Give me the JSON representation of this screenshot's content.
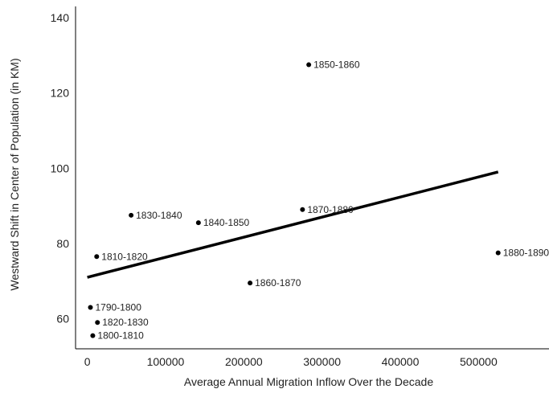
{
  "chart_data": {
    "type": "scatter",
    "title": "",
    "xlabel": "Average Annual Migration Inflow Over the Decade",
    "ylabel": "Westward Shift in Center of Population (in KM)",
    "xlim": [
      -15000,
      590000
    ],
    "ylim": [
      52,
      143
    ],
    "xticks": [
      0,
      100000,
      200000,
      300000,
      400000,
      500000
    ],
    "yticks": [
      60,
      80,
      100,
      120,
      140
    ],
    "grid": false,
    "legend": "none",
    "point_color": "#000000",
    "points": [
      {
        "label": "1790-1800",
        "x": 4000,
        "y": 63
      },
      {
        "label": "1800-1810",
        "x": 7000,
        "y": 55.5
      },
      {
        "label": "1810-1820",
        "x": 12000,
        "y": 76.5
      },
      {
        "label": "1820-1830",
        "x": 13000,
        "y": 59
      },
      {
        "label": "1830-1840",
        "x": 56000,
        "y": 87.5
      },
      {
        "label": "1840-1850",
        "x": 142000,
        "y": 85.5
      },
      {
        "label": "1850-1860",
        "x": 283000,
        "y": 127.5
      },
      {
        "label": "1860-1870",
        "x": 208000,
        "y": 69.5
      },
      {
        "label": "1870-1880",
        "x": 275000,
        "y": 89
      },
      {
        "label": "1880-1890",
        "x": 525000,
        "y": 77.5
      }
    ],
    "trendline": {
      "x": [
        0,
        525000
      ],
      "y": [
        71,
        99
      ],
      "color": "#000000"
    }
  }
}
